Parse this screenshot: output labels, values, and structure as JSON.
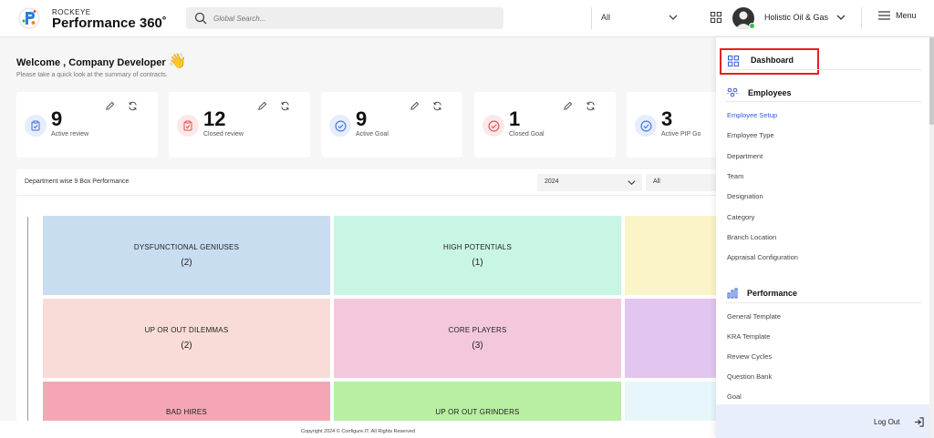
{
  "header": {
    "brand_small": "ROCKEYE",
    "brand_big": "Performance 360˚",
    "search_placeholder": "Global Search...",
    "search_scope": "All",
    "company": "Holistic Oil & Gas",
    "menu_label": "Menu",
    "status_color": "#37c24a"
  },
  "welcome": {
    "title": "Welcome , Company Developer",
    "wave_emoji": "👋",
    "subtitle": "Please take a quick look at the summary of contracts."
  },
  "cards": [
    {
      "value": "9",
      "label": "Active review",
      "icon": "clipboard-check-icon",
      "color": "#3b6fe0",
      "bg": "#e6edfc"
    },
    {
      "value": "12",
      "label": "Closed review",
      "icon": "clipboard-check-icon",
      "color": "#e04b4b",
      "bg": "#fde8e8"
    },
    {
      "value": "9",
      "label": "Active Goal",
      "icon": "check-circle-icon",
      "color": "#3b6fe0",
      "bg": "#e6edfc"
    },
    {
      "value": "1",
      "label": "Closed Goal",
      "icon": "check-circle-icon",
      "color": "#e04b4b",
      "bg": "#fde8e8"
    },
    {
      "value": "3",
      "label": "Active PIP Go",
      "icon": "check-circle-icon",
      "color": "#3b6fe0",
      "bg": "#e6edfc"
    }
  ],
  "panel": {
    "title": "Department wise 9 Box Performance",
    "year": "2024",
    "filter": "All",
    "boxes": [
      {
        "name": "DYSFUNCTIONAL GENIUSES",
        "count": "(2)",
        "color": "#c9ddf1"
      },
      {
        "name": "HIGH POTENTIALS",
        "count": "(1)",
        "color": "#c9f5e5"
      },
      {
        "name": "",
        "count": "",
        "color": "#faf4c8"
      },
      {
        "name": "UP OR OUT DILEMMAS",
        "count": "(2)",
        "color": "#f9dcd7"
      },
      {
        "name": "CORE PLAYERS",
        "count": "(3)",
        "color": "#f4c8dc"
      },
      {
        "name": "",
        "count": "",
        "color": "#e2c6ef"
      },
      {
        "name": "BAD HIRES",
        "count": "",
        "color": "#f4a6b4"
      },
      {
        "name": "UP OR OUT GRINDERS",
        "count": "",
        "color": "#b8efa3"
      },
      {
        "name": "",
        "count": "",
        "color": "#e6f6fb"
      }
    ]
  },
  "footer": {
    "text": "Copyright 2024 © Configure.IT. All Rights Reserved"
  },
  "sidemenu": {
    "dashboard": "Dashboard",
    "employees_head": "Employees",
    "employees": [
      "Employee Setup",
      "Employee Type",
      "Department",
      "Team",
      "Designation",
      "Category",
      "Branch Location",
      "Appraisal Configuration"
    ],
    "performance_head": "Performance",
    "performance": [
      "General Template",
      "KRA Template",
      "Review Cycles",
      "Question Bank",
      "Goal"
    ],
    "logout": "Log Out",
    "accent_color": "#2f5bd8",
    "highlight_color": "#e32020"
  }
}
